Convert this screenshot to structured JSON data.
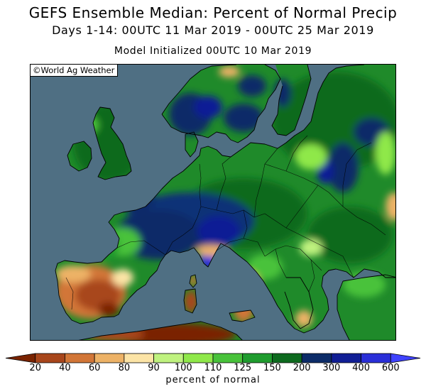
{
  "header": {
    "title": "GEFS Ensemble Median: Percent of Normal Precip",
    "period": "Days 1-14: 00UTC 11 Mar 2019 - 00UTC 25 Mar 2019",
    "initialized": "Model Initialized 00UTC 10 Mar 2019"
  },
  "map": {
    "credit": "©World Ag Weather",
    "region": "Europe",
    "ocean_color": "#4f6f83"
  },
  "legend": {
    "title": "percent of normal",
    "ticks": [
      "20",
      "40",
      "60",
      "80",
      "90",
      "100",
      "110",
      "125",
      "150",
      "200",
      "300",
      "400",
      "600"
    ],
    "colors": [
      "#7a2300",
      "#a8461b",
      "#d27637",
      "#edb266",
      "#fce4a6",
      "#bff27f",
      "#8fe84a",
      "#48c23a",
      "#1f9c2e",
      "#0d6a1e",
      "#0c2c68",
      "#101e95",
      "#2a2fd8",
      "#3f43ff"
    ]
  }
}
